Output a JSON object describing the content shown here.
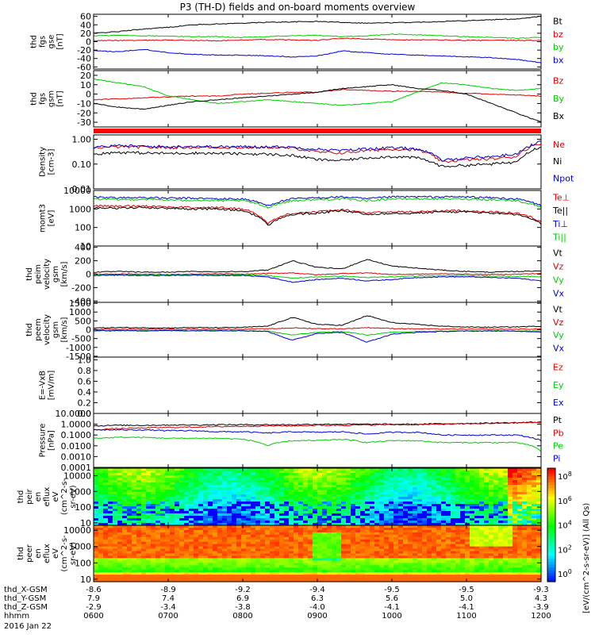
{
  "title": "P3 (TH-D) fields and on-board moments overview",
  "chart_data": {
    "type": "line",
    "time_axis": {
      "date": "2016 Jan 22",
      "tick_times": [
        "0600",
        "0700",
        "0800",
        "0900",
        "1000",
        "1100",
        "1200"
      ],
      "ephemeris": [
        {
          "label": "thd_X-GSM",
          "values": [
            "-8.6",
            "-8.9",
            "-9.2",
            "-9.4",
            "-9.5",
            "-9.5",
            "-9.3"
          ]
        },
        {
          "label": "thd_Y-GSM",
          "values": [
            "7.9",
            "7.4",
            "6.9",
            "6.3",
            "5.6",
            "5.0",
            "4.3"
          ]
        },
        {
          "label": "thd_Z-GSM",
          "values": [
            "-2.9",
            "-3.4",
            "-3.8",
            "-4.0",
            "-4.1",
            "-4.1",
            "-3.9"
          ]
        },
        {
          "label": "hhmm",
          "values": [
            "0600",
            "0700",
            "0800",
            "0900",
            "1000",
            "1100",
            "1200"
          ]
        }
      ]
    },
    "panels": [
      {
        "id": "fgs-gse",
        "ylabel": [
          "thd",
          "fgs",
          "gse",
          "[nT]"
        ],
        "scale": "linear",
        "yrange": [
          -65,
          65
        ],
        "ticks": [
          "60",
          "40",
          "20",
          "0",
          "-20",
          "-40",
          "-60"
        ],
        "series": [
          {
            "name": "Bt",
            "color": "#000000",
            "values": [
              20,
              24,
              30,
              34,
              40,
              42,
              44,
              46,
              47,
              48,
              46,
              44,
              45,
              46,
              48,
              50,
              52,
              54,
              60
            ]
          },
          {
            "name": "bz",
            "color": "#dd0000",
            "values": [
              2,
              3,
              3,
              4,
              3,
              2,
              4,
              5,
              4,
              3,
              8,
              6,
              5,
              4,
              4,
              3,
              3,
              3,
              3
            ]
          },
          {
            "name": "by",
            "color": "#00cc00",
            "values": [
              14,
              15,
              14,
              13,
              12,
              12,
              10,
              12,
              14,
              15,
              12,
              14,
              18,
              16,
              14,
              12,
              10,
              8,
              10
            ]
          },
          {
            "name": "bx",
            "color": "#0000cc",
            "values": [
              -22,
              -24,
              -18,
              -26,
              -30,
              -32,
              -32,
              -34,
              -36,
              -34,
              -22,
              -26,
              -30,
              -32,
              -34,
              -36,
              -38,
              -42,
              -50
            ]
          }
        ]
      },
      {
        "id": "fgs-gsm",
        "ylabel": [
          "thd",
          "fgs",
          "gsm",
          "[nT]"
        ],
        "scale": "linear",
        "yrange": [
          -35,
          25
        ],
        "ticks": [
          "20",
          "10",
          "0",
          "-10",
          "-20",
          "-30"
        ],
        "series": [
          {
            "name": "Bz",
            "color": "#dd0000",
            "values": [
              -6,
              -5,
              -4,
              -3,
              -2,
              -2,
              0,
              1,
              2,
              2,
              5,
              4,
              3,
              3,
              2,
              1,
              0,
              -1,
              -2
            ]
          },
          {
            "name": "By",
            "color": "#00cc00",
            "values": [
              16,
              12,
              8,
              -2,
              -6,
              -10,
              -8,
              -6,
              -8,
              -10,
              -12,
              -10,
              -8,
              2,
              12,
              10,
              6,
              4,
              6
            ]
          },
          {
            "name": "Bx",
            "color": "#000000",
            "values": [
              -10,
              -14,
              -16,
              -12,
              -8,
              -6,
              -4,
              -2,
              0,
              2,
              6,
              8,
              10,
              6,
              4,
              0,
              -10,
              -20,
              -30
            ]
          }
        ]
      },
      {
        "id": "density",
        "ylabel": [
          "Density",
          "[cm-3]"
        ],
        "scale": "log",
        "yrange": [
          0.01,
          1.5
        ],
        "ticks": [
          "1.00",
          "0.10",
          "0.01"
        ],
        "series": [
          {
            "name": "Ne",
            "color": "#dd0000",
            "values": [
              0.45,
              0.5,
              0.48,
              0.46,
              0.48,
              0.47,
              0.46,
              0.48,
              0.44,
              0.3,
              0.28,
              0.35,
              0.4,
              0.38,
              0.12,
              0.15,
              0.16,
              0.2,
              0.7
            ]
          },
          {
            "name": "Ni",
            "color": "#000000",
            "values": [
              0.25,
              0.3,
              0.28,
              0.27,
              0.28,
              0.27,
              0.26,
              0.25,
              0.22,
              0.15,
              0.14,
              0.18,
              0.2,
              0.18,
              0.08,
              0.09,
              0.1,
              0.12,
              0.5
            ]
          },
          {
            "name": "Npot",
            "color": "#0000cc",
            "values": [
              0.5,
              0.55,
              0.52,
              0.5,
              0.52,
              0.5,
              0.5,
              0.5,
              0.48,
              0.4,
              0.35,
              0.42,
              0.45,
              0.42,
              0.14,
              0.18,
              0.2,
              0.25,
              0.8
            ]
          }
        ]
      },
      {
        "id": "mom-temp",
        "ylabel": [
          "momt3",
          "[eV]"
        ],
        "scale": "log",
        "yrange": [
          10,
          10000
        ],
        "ticks": [
          "10000",
          "1000",
          "100",
          "10"
        ],
        "series": [
          {
            "name": "Te⊥",
            "color": "#dd0000",
            "values": [
              1500,
              1400,
              1500,
              1300,
              1200,
              1200,
              1000,
              150,
              600,
              700,
              900,
              600,
              700,
              700,
              800,
              800,
              700,
              600,
              200
            ]
          },
          {
            "name": "Te||",
            "color": "#000000",
            "values": [
              1200,
              1100,
              1200,
              1100,
              1000,
              1000,
              800,
              120,
              500,
              600,
              800,
              500,
              600,
              600,
              700,
              700,
              600,
              500,
              150
            ]
          },
          {
            "name": "Ti⊥",
            "color": "#0000cc",
            "values": [
              4500,
              4000,
              4200,
              3800,
              3800,
              3500,
              3500,
              1500,
              3500,
              4000,
              4500,
              3500,
              4500,
              4500,
              4500,
              4500,
              4000,
              3500,
              1500
            ]
          },
          {
            "name": "Ti||",
            "color": "#00cc00",
            "values": [
              3500,
              3200,
              3400,
              3000,
              3000,
              2800,
              2800,
              1200,
              2800,
              3200,
              3500,
              2800,
              3500,
              3500,
              3500,
              3500,
              3200,
              2800,
              1200
            ]
          }
        ]
      },
      {
        "id": "peim-velocity",
        "ylabel": [
          "thd",
          "peim",
          "velocity",
          "gsm",
          "[km/s]"
        ],
        "scale": "linear",
        "yrange": [
          -420,
          420
        ],
        "ticks": [
          "400",
          "200",
          "0",
          "-200",
          "-400"
        ],
        "series": [
          {
            "name": "Vt",
            "color": "#000000",
            "values": [
              30,
              40,
              30,
              30,
              40,
              35,
              40,
              60,
              200,
              100,
              80,
              220,
              120,
              90,
              60,
              40,
              30,
              40,
              50
            ]
          },
          {
            "name": "Vz",
            "color": "#dd0000",
            "values": [
              0,
              5,
              0,
              -5,
              0,
              5,
              0,
              10,
              20,
              -10,
              10,
              20,
              -5,
              0,
              5,
              0,
              -5,
              0,
              10
            ]
          },
          {
            "name": "Vy",
            "color": "#00cc00",
            "values": [
              -10,
              -5,
              -10,
              -10,
              -5,
              -10,
              -10,
              -20,
              -60,
              -40,
              -30,
              -50,
              -40,
              -30,
              -20,
              -20,
              -30,
              -30,
              -40
            ]
          },
          {
            "name": "Vx",
            "color": "#0000cc",
            "values": [
              -20,
              -15,
              -20,
              -20,
              -15,
              -20,
              -20,
              -40,
              -120,
              -80,
              -60,
              -100,
              -80,
              -50,
              -40,
              -40,
              -50,
              -60,
              -100
            ]
          }
        ]
      },
      {
        "id": "peem-velocity",
        "ylabel": [
          "thd",
          "peem",
          "velocity",
          "gsm",
          "[km/s]"
        ],
        "scale": "linear",
        "yrange": [
          -1550,
          1550
        ],
        "ticks": [
          "1500",
          "1000",
          "500",
          "0",
          "-500",
          "-1000",
          "-1500"
        ],
        "series": [
          {
            "name": "Vt",
            "color": "#000000",
            "values": [
              100,
              120,
              110,
              100,
              120,
              110,
              130,
              200,
              700,
              300,
              250,
              800,
              400,
              300,
              200,
              150,
              140,
              160,
              200
            ]
          },
          {
            "name": "Vz",
            "color": "#dd0000",
            "values": [
              20,
              30,
              20,
              20,
              30,
              25,
              30,
              50,
              100,
              60,
              50,
              120,
              70,
              50,
              40,
              30,
              30,
              30,
              40
            ]
          },
          {
            "name": "Vy",
            "color": "#00cc00",
            "values": [
              -50,
              -40,
              -50,
              -40,
              -50,
              -40,
              -50,
              -80,
              -300,
              -150,
              -100,
              -300,
              -150,
              -100,
              -80,
              -70,
              -60,
              -70,
              -80
            ]
          },
          {
            "name": "Vx",
            "color": "#0000cc",
            "values": [
              -60,
              -50,
              -60,
              -50,
              -60,
              -50,
              -60,
              -100,
              -600,
              -200,
              -150,
              -700,
              -250,
              -150,
              -100,
              -80,
              -70,
              -80,
              -120
            ]
          }
        ]
      },
      {
        "id": "efield",
        "ylabel": [
          "E=-VxB",
          "[mV/m]"
        ],
        "scale": "linear",
        "yrange": [
          0,
          1.05
        ],
        "ticks": [
          "1.0",
          "0.8",
          "0.6",
          "0.4",
          "0.2",
          "0.0"
        ],
        "series": [
          {
            "name": "Ez",
            "color": "#dd0000",
            "values": []
          },
          {
            "name": "Ey",
            "color": "#00cc00",
            "values": []
          },
          {
            "name": "Ex",
            "color": "#0000cc",
            "values": []
          }
        ]
      },
      {
        "id": "pressure",
        "ylabel": [
          "Pressure",
          "[nPa]"
        ],
        "scale": "log",
        "yrange": [
          0.0001,
          10
        ],
        "ticks": [
          "10.0000",
          "1.0000",
          "0.1000",
          "0.0100",
          "0.0010",
          "0.0001"
        ],
        "series": [
          {
            "name": "Pt",
            "color": "#000000",
            "values": [
              0.7,
              0.8,
              0.8,
              0.85,
              0.85,
              0.9,
              0.9,
              0.9,
              0.9,
              1.0,
              1.0,
              1.0,
              1.0,
              1.0,
              1.1,
              1.2,
              1.3,
              1.4,
              1.6
            ]
          },
          {
            "name": "Pb",
            "color": "#dd0000",
            "values": [
              0.3,
              0.4,
              0.45,
              0.5,
              0.55,
              0.6,
              0.65,
              0.7,
              0.7,
              0.8,
              0.8,
              0.85,
              0.9,
              0.9,
              1.0,
              1.1,
              1.2,
              1.3,
              1.5
            ]
          },
          {
            "name": "Pe",
            "color": "#00cc00",
            "values": [
              0.05,
              0.06,
              0.06,
              0.05,
              0.05,
              0.05,
              0.04,
              0.01,
              0.03,
              0.03,
              0.04,
              0.02,
              0.03,
              0.03,
              0.02,
              0.02,
              0.02,
              0.02,
              0.003
            ]
          },
          {
            "name": "Pi",
            "color": "#0000cc",
            "values": [
              0.3,
              0.3,
              0.3,
              0.25,
              0.25,
              0.2,
              0.2,
              0.15,
              0.2,
              0.18,
              0.2,
              0.12,
              0.18,
              0.18,
              0.1,
              0.1,
              0.1,
              0.1,
              0.03
            ]
          }
        ]
      },
      {
        "id": "peir-spec",
        "ylabel": [
          "thd",
          "peir",
          "en",
          "eflux",
          "eV",
          "(cm^2-s-",
          "sr-eV)"
        ],
        "scale": "log",
        "yrange": [
          7,
          30000
        ],
        "ticks": [
          "10000",
          "1000",
          "100",
          "10"
        ],
        "spectrogram": true
      },
      {
        "id": "peer-spec",
        "ylabel": [
          "thd",
          "peer",
          "en",
          "eflux",
          "eV",
          "(cm^2-s-",
          "sr-eV)"
        ],
        "scale": "log",
        "yrange": [
          7,
          20000
        ],
        "ticks": [
          "10000",
          "1000",
          "100",
          "10"
        ],
        "spectrogram": true
      }
    ],
    "colorbar": {
      "ticks": [
        "10^8",
        "10^6",
        "10^4",
        "10^2",
        "10^0"
      ],
      "label": "[eV/(cm^2-s-sr-eV)] (All Qs)"
    }
  }
}
